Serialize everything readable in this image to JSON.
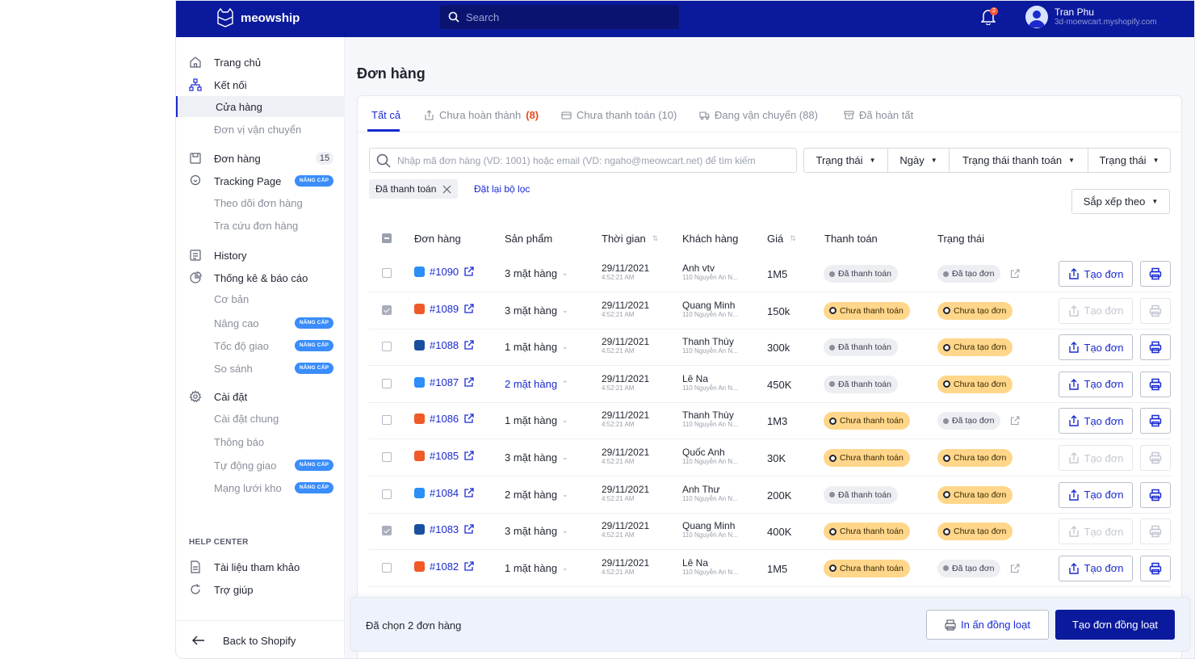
{
  "header": {
    "brand": "meowship",
    "search_placeholder": "Search",
    "notification_count": "2",
    "user_name": "Tran Phu",
    "user_shop": "3d-moewcart.myshopify.com"
  },
  "sidebar": {
    "items": [
      {
        "label": "Trang chủ",
        "icon": "home-icon"
      },
      {
        "label": "Kết nối",
        "icon": "network-icon"
      },
      {
        "label": "Cửa hàng"
      },
      {
        "label": "Đơn vị vận chuyển"
      },
      {
        "label": "Đơn hàng",
        "icon": "orders-icon",
        "count": "15"
      },
      {
        "label": "Tracking Page",
        "icon": "location-icon",
        "badge": "NÂNG CẤP"
      },
      {
        "label": "Theo dõi đơn hàng"
      },
      {
        "label": "Tra cứu đơn hàng"
      },
      {
        "label": "History",
        "icon": "history-icon"
      },
      {
        "label": "Thống kê & báo cáo",
        "icon": "chart-icon"
      },
      {
        "label": "Cơ bản"
      },
      {
        "label": "Nâng cao",
        "badge": "NÂNG CẤP"
      },
      {
        "label": "Tốc độ giao",
        "badge": "NÂNG CẤP"
      },
      {
        "label": "So sánh",
        "badge": "NÂNG CẤP"
      },
      {
        "label": "Cài đặt",
        "icon": "gear-icon"
      },
      {
        "label": "Cài đặt chung"
      },
      {
        "label": "Thông báo"
      },
      {
        "label": "Tự động giao",
        "badge": "NÂNG CẤP"
      },
      {
        "label": "Mạng lưới kho",
        "badge": "NÂNG CẤP"
      }
    ],
    "help_title": "HELP CENTER",
    "help_items": [
      {
        "label": "Tài liệu tham khảo"
      },
      {
        "label": "Trợ giúp"
      }
    ],
    "back_label": "Back to Shopify"
  },
  "page": {
    "title": "Đơn hàng",
    "tabs": [
      {
        "label": "Tất cả"
      },
      {
        "label": "Chưa hoàn thành",
        "count": "(8)"
      },
      {
        "label": "Chưa thanh toán (10)"
      },
      {
        "label": "Đang vận chuyển (88)"
      },
      {
        "label": "Đã hoàn tất"
      }
    ],
    "search_placeholder": "Nhập mã đơn hàng (VD: 1001) hoặc email (VD: ngaho@meowcart.net) để tìm kiếm",
    "filters": [
      "Trạng thái",
      "Ngày",
      "Trạng thái thanh toán",
      "Trạng thái"
    ],
    "active_filter": "Đã thanh toán",
    "reset_label": "Đặt lại bộ lọc",
    "sort_label": "Sắp xếp theo",
    "columns": [
      "Đơn hàng",
      "Sản phẩm",
      "Thời gian",
      "Khách hàng",
      "Giá",
      "Thanh toán",
      "Trạng thái"
    ],
    "create_label": "Tạo đơn"
  },
  "orders": [
    {
      "id": "#1090",
      "platform": "blue",
      "products": "3 mặt hàng",
      "date": "29/11/2021",
      "time": "4:52:21 AM",
      "customer": "Anh vtv",
      "address": "110 Nguyễn An N...",
      "price": "1M5",
      "payment": "Đã thanh toán",
      "status": "Đã tạo đơn",
      "checked": false
    },
    {
      "id": "#1089",
      "platform": "orange",
      "products": "3 mặt hàng",
      "date": "29/11/2021",
      "time": "4:52:21 AM",
      "customer": "Quang Minh",
      "address": "110 Nguyễn An N...",
      "price": "150k",
      "payment": "Chưa thanh toán",
      "status": "Chưa tạo đơn",
      "checked": true
    },
    {
      "id": "#1088",
      "platform": "navy",
      "products": "1 mặt hàng",
      "date": "29/11/2021",
      "time": "4:52:21 AM",
      "customer": "Thanh Thùy",
      "address": "110 Nguyễn An N...",
      "price": "300k",
      "payment": "Đã thanh toán",
      "status": "Chưa tạo đơn",
      "checked": false
    },
    {
      "id": "#1087",
      "platform": "blue",
      "products": "2 mặt hàng",
      "date": "29/11/2021",
      "time": "4:52:21 AM",
      "customer": "Lê Na",
      "address": "110 Nguyễn An N...",
      "price": "450K",
      "payment": "Đã thanh toán",
      "status": "Chưa tạo đơn",
      "checked": false
    },
    {
      "id": "#1086",
      "platform": "orange",
      "products": "1 mặt hàng",
      "date": "29/11/2021",
      "time": "4:52:21 AM",
      "customer": "Thanh Thùy",
      "address": "110 Nguyễn An N...",
      "price": "1M3",
      "payment": "Chưa thanh toán",
      "status": "Đã tạo đơn",
      "checked": false
    },
    {
      "id": "#1085",
      "platform": "orange",
      "products": "3 mặt hàng",
      "date": "29/11/2021",
      "time": "4:52:21 AM",
      "customer": "Quốc Anh",
      "address": "110 Nguyễn An N...",
      "price": "30K",
      "payment": "Chưa thanh toán",
      "status": "Chưa tạo đơn",
      "checked": false
    },
    {
      "id": "#1084",
      "platform": "blue",
      "products": "2 mặt hàng",
      "date": "29/11/2021",
      "time": "4:52:21 AM",
      "customer": "Anh Thư",
      "address": "110 Nguyễn An N...",
      "price": "200K",
      "payment": "Đã thanh toán",
      "status": "Chưa tạo đơn",
      "checked": false
    },
    {
      "id": "#1083",
      "platform": "navy",
      "products": "3 mặt hàng",
      "date": "29/11/2021",
      "time": "4:52:21 AM",
      "customer": "Quang Minh",
      "address": "110 Nguyễn An N...",
      "price": "400K",
      "payment": "Chưa thanh toán",
      "status": "Chưa tạo đơn",
      "checked": true
    },
    {
      "id": "#1082",
      "platform": "orange",
      "products": "1 mặt hàng",
      "date": "29/11/2021",
      "time": "4:52:21 AM",
      "customer": "Lê Na",
      "address": "110 Nguyễn An N...",
      "price": "1M5",
      "payment": "Chưa thanh toán",
      "status": "Đã tạo đơn",
      "checked": false
    }
  ],
  "bulk": {
    "selected_text": "Đã chọn 2 đơn hàng",
    "print_label": "In ấn đồng loạt",
    "create_label": "Tạo đơn đồng loạt"
  },
  "colors": {
    "brand_navy": "#0b1a9c",
    "link_blue": "#1a2ad0",
    "paid_pill": "#eceef2",
    "unpaid_pill": "#ffd68a",
    "upgrade_badge": "#3a8dfb"
  }
}
